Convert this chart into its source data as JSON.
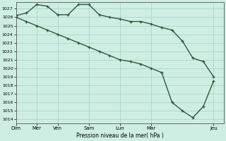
{
  "title": "Pression niveau de la mer( hPa )",
  "bg_color": "#ceeee4",
  "grid_color": "#a8d8cc",
  "line_color": "#2d5a35",
  "ylim": [
    1013.5,
    1027.8
  ],
  "yticks": [
    1014,
    1015,
    1016,
    1017,
    1018,
    1019,
    1020,
    1021,
    1022,
    1023,
    1024,
    1025,
    1026,
    1027
  ],
  "xlabels": [
    "Dim",
    "Mer",
    "Ven",
    "Sam",
    "Lun",
    "Mar",
    "Jeu"
  ],
  "xtick_positions": [
    0,
    2,
    4,
    7,
    10,
    13,
    19
  ],
  "xmax": 20,
  "line1_x": [
    0,
    1,
    2,
    3,
    4,
    5,
    6,
    7,
    8,
    9,
    10,
    11,
    12,
    13,
    14,
    15,
    16,
    17,
    18,
    19
  ],
  "line1_y": [
    1026.2,
    1026.5,
    1027.5,
    1027.3,
    1026.3,
    1026.3,
    1027.5,
    1027.5,
    1026.3,
    1026.0,
    1025.8,
    1025.5,
    1025.5,
    1025.2,
    1024.8,
    1024.5,
    1023.2,
    1021.2,
    1020.8,
    1019.0
  ],
  "line2_x": [
    0,
    1,
    2,
    3,
    4,
    5,
    6,
    7,
    8,
    9,
    10,
    11,
    12,
    13,
    14,
    15,
    16,
    17,
    18,
    19
  ],
  "line2_y": [
    1026.0,
    1025.5,
    1025.0,
    1024.5,
    1024.0,
    1023.5,
    1023.0,
    1022.5,
    1022.0,
    1021.5,
    1021.0,
    1020.8,
    1020.5,
    1020.0,
    1019.5,
    1016.0,
    1015.0,
    1014.2,
    1015.5,
    1018.5
  ],
  "marker": "+",
  "markersize": 3.5,
  "linewidth": 1.0
}
